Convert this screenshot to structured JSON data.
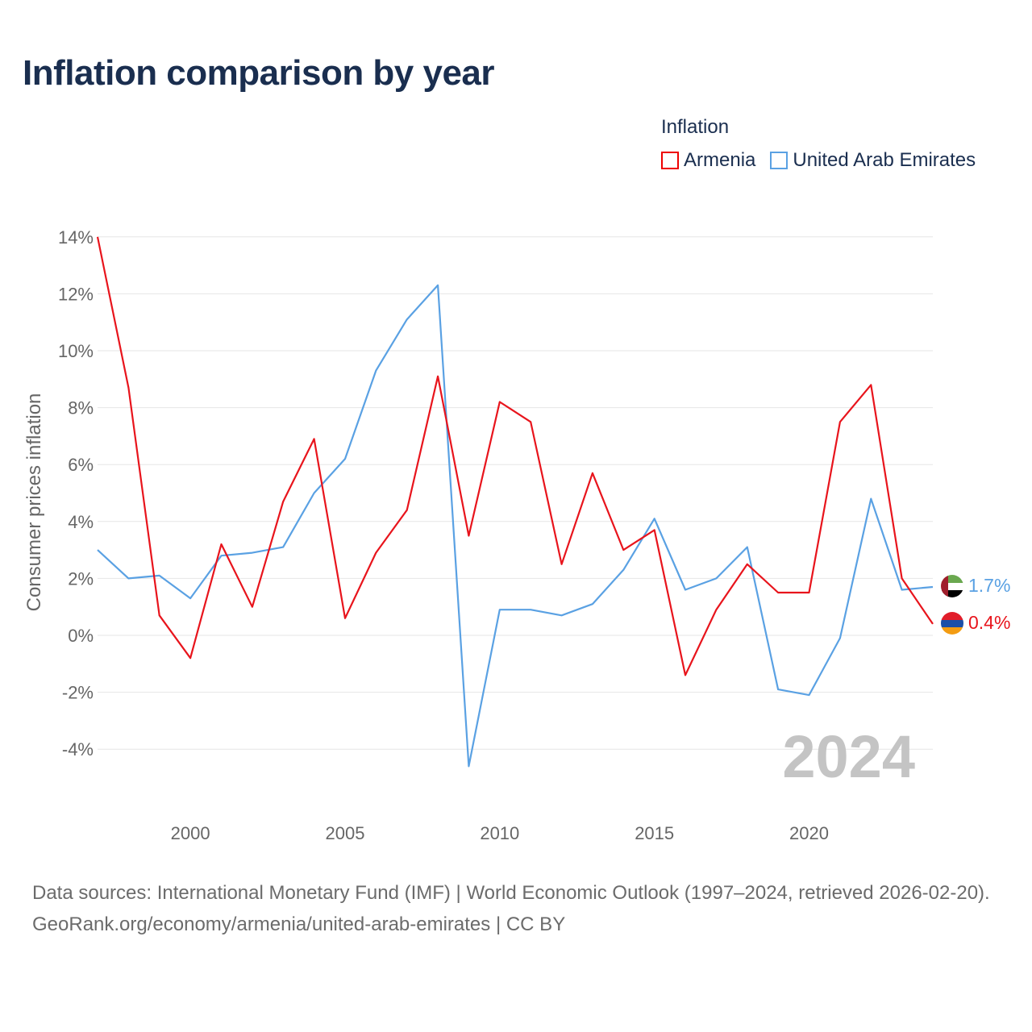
{
  "title": "Inflation comparison by year",
  "legend": {
    "title": "Inflation",
    "items": [
      {
        "label": "Armenia",
        "color": "#e8141c"
      },
      {
        "label": "United Arab Emirates",
        "color": "#5aa1e3"
      }
    ]
  },
  "chart_data": {
    "type": "line",
    "title": "Inflation comparison by year",
    "xlabel": "",
    "ylabel": "Consumer prices inflation",
    "x": [
      1997,
      1998,
      1999,
      2000,
      2001,
      2002,
      2003,
      2004,
      2005,
      2006,
      2007,
      2008,
      2009,
      2010,
      2011,
      2012,
      2013,
      2014,
      2015,
      2016,
      2017,
      2018,
      2019,
      2020,
      2021,
      2022,
      2023,
      2024
    ],
    "xticks": [
      "2000",
      "2005",
      "2010",
      "2015",
      "2020"
    ],
    "yticks": [
      "14%",
      "12%",
      "10%",
      "8%",
      "6%",
      "4%",
      "2%",
      "0%",
      "-2%",
      "-4%"
    ],
    "ylim": [
      -4.5,
      14
    ],
    "grid": true,
    "series": [
      {
        "name": "Armenia",
        "color": "#e8141c",
        "values": [
          14.0,
          8.7,
          0.7,
          -0.8,
          3.2,
          1.0,
          4.7,
          6.9,
          0.6,
          2.9,
          4.4,
          9.1,
          3.5,
          8.2,
          7.5,
          2.5,
          5.7,
          3.0,
          3.7,
          -1.4,
          0.9,
          2.5,
          1.5,
          1.5,
          7.5,
          8.8,
          2.0,
          0.4
        ],
        "end_label": "0.4%"
      },
      {
        "name": "United Arab Emirates",
        "color": "#5aa1e3",
        "values": [
          3.0,
          2.0,
          2.1,
          1.3,
          2.8,
          2.9,
          3.1,
          5.0,
          6.2,
          9.3,
          11.1,
          12.3,
          -4.6,
          0.9,
          0.9,
          0.7,
          1.1,
          2.3,
          4.1,
          1.6,
          2.0,
          3.1,
          -1.9,
          -2.1,
          -0.1,
          4.8,
          1.6,
          1.7
        ],
        "end_label": "1.7%"
      }
    ],
    "watermark": "2024"
  },
  "footer": {
    "line1": "Data sources: International Monetary Fund (IMF) | World Economic Outlook (1997–2024, retrieved 2026-02-20).",
    "line2": "GeoRank.org/economy/armenia/united-arab-emirates | CC BY"
  }
}
